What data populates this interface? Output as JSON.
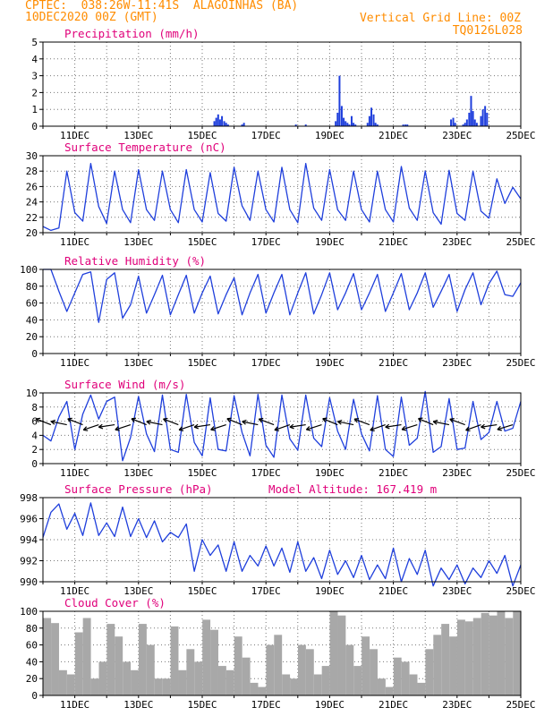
{
  "header": {
    "line1_left": "CPTEC:  038:26W-11:41S  ALAGOINHAS (BA)",
    "line2_left": "10DEC2020 00Z (GMT)",
    "line1_right": "Vertical Grid Line: 00Z",
    "line2_right": "TQ0126L028"
  },
  "colors": {
    "header": "#ff8c00",
    "panel_title": "#e0007a",
    "line": "#1f3fdc",
    "cloud_fill": "#a8a8a8",
    "grid": "#777777"
  },
  "chart_data": [
    {
      "type": "bar",
      "title": "Precipitation (mm/h)",
      "ylim": [
        0,
        5
      ],
      "yticks": [
        0,
        1,
        2,
        3,
        4,
        5
      ],
      "x_tick_labels": [
        "11DEC",
        "13DEC",
        "15DEC",
        "17DEC",
        "19DEC",
        "21DEC",
        "23DEC",
        "25DEC"
      ],
      "x": [
        5.38,
        5.44,
        5.5,
        5.56,
        5.62,
        5.69,
        5.75,
        5.81,
        6.25,
        6.31,
        7.94,
        8.25,
        9.19,
        9.25,
        9.31,
        9.38,
        9.44,
        9.5,
        9.56,
        9.62,
        9.69,
        9.75,
        9.81,
        10.19,
        10.25,
        10.31,
        10.38,
        10.44,
        10.5,
        11.31,
        11.38,
        11.44,
        12.81,
        12.88,
        12.94,
        13.19,
        13.25,
        13.31,
        13.38,
        13.44,
        13.5,
        13.56,
        13.62,
        13.75,
        13.81,
        13.88,
        13.94
      ],
      "values": [
        0.3,
        0.5,
        0.7,
        0.4,
        0.6,
        0.3,
        0.2,
        0.1,
        0.1,
        0.2,
        0.1,
        0.1,
        0.3,
        0.8,
        3.0,
        1.2,
        0.5,
        0.3,
        0.2,
        0.1,
        0.6,
        0.2,
        0.1,
        0.2,
        0.6,
        1.1,
        0.7,
        0.2,
        0.1,
        0.1,
        0.1,
        0.1,
        0.4,
        0.5,
        0.2,
        0.1,
        0.2,
        0.4,
        0.8,
        1.8,
        0.9,
        0.4,
        0.2,
        0.6,
        1.0,
        1.2,
        0.8
      ]
    },
    {
      "type": "line",
      "title": "Surface Temperature (nC)",
      "ylim": [
        20,
        30
      ],
      "yticks": [
        20,
        22,
        24,
        26,
        28,
        30
      ],
      "x_tick_labels": [
        "11DEC",
        "13DEC",
        "15DEC",
        "17DEC",
        "19DEC",
        "21DEC",
        "23DEC",
        "25DEC"
      ],
      "x": [
        0,
        0.25,
        0.5,
        0.75,
        1,
        1.25,
        1.5,
        1.75,
        2,
        2.25,
        2.5,
        2.75,
        3,
        3.25,
        3.5,
        3.75,
        4,
        4.25,
        4.5,
        4.75,
        5,
        5.25,
        5.5,
        5.75,
        6,
        6.25,
        6.5,
        6.75,
        7,
        7.25,
        7.5,
        7.75,
        8,
        8.25,
        8.5,
        8.75,
        9,
        9.25,
        9.5,
        9.75,
        10,
        10.25,
        10.5,
        10.75,
        11,
        11.25,
        11.5,
        11.75,
        12,
        12.25,
        12.5,
        12.75,
        13,
        13.25,
        13.5,
        13.75,
        14,
        14.25,
        14.5,
        14.75,
        15
      ],
      "values": [
        20.8,
        20.3,
        20.6,
        28.0,
        22.6,
        21.5,
        29.0,
        23.4,
        21.2,
        28.0,
        23.0,
        21.3,
        28.2,
        23.0,
        21.6,
        28.0,
        23.0,
        21.3,
        28.2,
        23.0,
        21.4,
        27.8,
        22.5,
        21.5,
        28.5,
        23.5,
        21.6,
        28.0,
        23.0,
        21.4,
        28.5,
        23.0,
        21.3,
        29.0,
        23.2,
        21.6,
        28.2,
        23.0,
        21.6,
        28.0,
        23.0,
        21.4,
        28.0,
        23.0,
        21.4,
        28.6,
        23.2,
        21.6,
        28.0,
        22.6,
        21.1,
        28.1,
        22.5,
        21.6,
        28.0,
        22.8,
        21.9,
        27.0,
        23.8,
        25.9,
        24.4
      ]
    },
    {
      "type": "line",
      "title": "Relative Humidity (%)",
      "ylim": [
        0,
        100
      ],
      "yticks": [
        0,
        20,
        40,
        60,
        80,
        100
      ],
      "x_tick_labels": [
        "11DEC",
        "13DEC",
        "15DEC",
        "17DEC",
        "19DEC",
        "21DEC",
        "23DEC",
        "25DEC"
      ],
      "x": [
        0,
        0.25,
        0.5,
        0.75,
        1,
        1.25,
        1.5,
        1.75,
        2,
        2.25,
        2.5,
        2.75,
        3,
        3.25,
        3.5,
        3.75,
        4,
        4.25,
        4.5,
        4.75,
        5,
        5.25,
        5.5,
        5.75,
        6,
        6.25,
        6.5,
        6.75,
        7,
        7.25,
        7.5,
        7.75,
        8,
        8.25,
        8.5,
        8.75,
        9,
        9.25,
        9.5,
        9.75,
        10,
        10.25,
        10.5,
        10.75,
        11,
        11.25,
        11.5,
        11.75,
        12,
        12.25,
        12.5,
        12.75,
        13,
        13.25,
        13.5,
        13.75,
        14,
        14.25,
        14.5,
        14.75,
        15
      ],
      "values": [
        100,
        100,
        74,
        50,
        72,
        94,
        97,
        37,
        88,
        96,
        42,
        58,
        92,
        48,
        70,
        93,
        46,
        70,
        93,
        48,
        72,
        92,
        47,
        70,
        90,
        46,
        72,
        94,
        48,
        72,
        94,
        46,
        72,
        96,
        47,
        70,
        96,
        52,
        72,
        95,
        52,
        72,
        94,
        50,
        72,
        95,
        52,
        72,
        96,
        55,
        74,
        94,
        50,
        76,
        96,
        58,
        83,
        98,
        70,
        68,
        84
      ]
    },
    {
      "type": "line",
      "title": "Surface Wind (m/s)",
      "ylim": [
        0,
        10
      ],
      "yticks": [
        0,
        2,
        4,
        6,
        8,
        10
      ],
      "x_tick_labels": [
        "11DEC",
        "13DEC",
        "15DEC",
        "17DEC",
        "19DEC",
        "21DEC",
        "23DEC",
        "25DEC"
      ],
      "x": [
        0,
        0.25,
        0.5,
        0.75,
        1,
        1.25,
        1.5,
        1.75,
        2,
        2.25,
        2.5,
        2.75,
        3,
        3.25,
        3.5,
        3.75,
        4,
        4.25,
        4.5,
        4.75,
        5,
        5.25,
        5.5,
        5.75,
        6,
        6.25,
        6.5,
        6.75,
        7,
        7.25,
        7.5,
        7.75,
        8,
        8.25,
        8.5,
        8.75,
        9,
        9.25,
        9.5,
        9.75,
        10,
        10.25,
        10.5,
        10.75,
        11,
        11.25,
        11.5,
        11.75,
        12,
        12.25,
        12.5,
        12.75,
        13,
        13.25,
        13.5,
        13.75,
        14,
        14.25,
        14.5,
        14.75,
        15
      ],
      "values": [
        4.0,
        3.2,
        6.6,
        8.8,
        2.0,
        7.0,
        9.7,
        6.3,
        8.8,
        9.4,
        0.4,
        3.7,
        9.5,
        4.2,
        1.7,
        9.7,
        2.0,
        1.6,
        9.8,
        3.0,
        1.1,
        9.3,
        2.0,
        1.8,
        9.6,
        4.4,
        1.1,
        9.8,
        2.6,
        0.9,
        9.7,
        3.5,
        1.9,
        9.7,
        3.6,
        2.4,
        9.3,
        4.6,
        2.0,
        9.1,
        4.2,
        1.8,
        9.6,
        2.0,
        1.0,
        9.4,
        2.6,
        3.6,
        10.2,
        1.6,
        2.4,
        9.2,
        2.0,
        2.2,
        8.8,
        3.4,
        4.4,
        8.8,
        4.6,
        5.0,
        8.8
      ]
    },
    {
      "type": "line",
      "title": "Surface Pressure (hPa)",
      "annotation": "Model Altitude: 167.419 m",
      "ylim": [
        990,
        998
      ],
      "yticks": [
        990,
        992,
        994,
        996,
        998
      ],
      "x_tick_labels": [
        "11DEC",
        "13DEC",
        "15DEC",
        "17DEC",
        "19DEC",
        "21DEC",
        "23DEC",
        "25DEC"
      ],
      "x": [
        0,
        0.25,
        0.5,
        0.75,
        1,
        1.25,
        1.5,
        1.75,
        2,
        2.25,
        2.5,
        2.75,
        3,
        3.25,
        3.5,
        3.75,
        4,
        4.25,
        4.5,
        4.75,
        5,
        5.25,
        5.5,
        5.75,
        6,
        6.25,
        6.5,
        6.75,
        7,
        7.25,
        7.5,
        7.75,
        8,
        8.25,
        8.5,
        8.75,
        9,
        9.25,
        9.5,
        9.75,
        10,
        10.25,
        10.5,
        10.75,
        11,
        11.25,
        11.5,
        11.75,
        12,
        12.25,
        12.5,
        12.75,
        13,
        13.25,
        13.5,
        13.75,
        14,
        14.25,
        14.5,
        14.75,
        15
      ],
      "values": [
        994.2,
        996.6,
        997.4,
        995.0,
        996.5,
        994.4,
        997.5,
        994.4,
        995.6,
        994.3,
        997.1,
        994.3,
        996.0,
        994.2,
        995.8,
        993.8,
        994.7,
        994.2,
        995.5,
        991.0,
        994.0,
        992.5,
        993.5,
        991.0,
        993.8,
        991.0,
        992.5,
        991.5,
        993.4,
        991.5,
        993.2,
        990.9,
        993.8,
        991.0,
        992.3,
        990.3,
        993.0,
        990.7,
        992.0,
        990.4,
        992.5,
        990.2,
        991.6,
        990.3,
        993.2,
        990.0,
        992.2,
        990.7,
        993.0,
        989.6,
        991.3,
        990.2,
        991.6,
        989.8,
        991.3,
        990.4,
        992.0,
        990.8,
        992.5,
        989.6,
        991.6
      ]
    },
    {
      "type": "bar",
      "title": "Cloud Cover (%)",
      "ylim": [
        0,
        100
      ],
      "yticks": [
        0,
        20,
        40,
        60,
        80,
        100
      ],
      "x_tick_labels": [
        "11DEC",
        "13DEC",
        "15DEC",
        "17DEC",
        "19DEC",
        "21DEC",
        "23DEC",
        "25DEC"
      ],
      "x": [
        0.13,
        0.38,
        0.63,
        0.88,
        1.13,
        1.38,
        1.63,
        1.88,
        2.13,
        2.38,
        2.63,
        2.88,
        3.13,
        3.38,
        3.63,
        3.88,
        4.13,
        4.38,
        4.63,
        4.88,
        5.13,
        5.38,
        5.63,
        5.88,
        6.13,
        6.38,
        6.63,
        6.88,
        7.13,
        7.38,
        7.63,
        7.88,
        8.13,
        8.38,
        8.63,
        8.88,
        9.13,
        9.38,
        9.63,
        9.88,
        10.13,
        10.38,
        10.63,
        10.88,
        11.13,
        11.38,
        11.63,
        11.88,
        12.13,
        12.38,
        12.63,
        12.88,
        13.13,
        13.38,
        13.63,
        13.88,
        14.13,
        14.38,
        14.63,
        14.88
      ],
      "values": [
        92,
        86,
        30,
        25,
        75,
        92,
        20,
        40,
        85,
        70,
        40,
        30,
        85,
        60,
        20,
        20,
        82,
        30,
        55,
        40,
        90,
        78,
        35,
        30,
        70,
        45,
        15,
        10,
        60,
        72,
        25,
        20,
        60,
        55,
        25,
        35,
        100,
        95,
        60,
        35,
        70,
        55,
        20,
        10,
        45,
        40,
        25,
        15,
        55,
        72,
        85,
        70,
        90,
        88,
        92,
        98,
        95,
        100,
        92,
        100
      ]
    }
  ]
}
